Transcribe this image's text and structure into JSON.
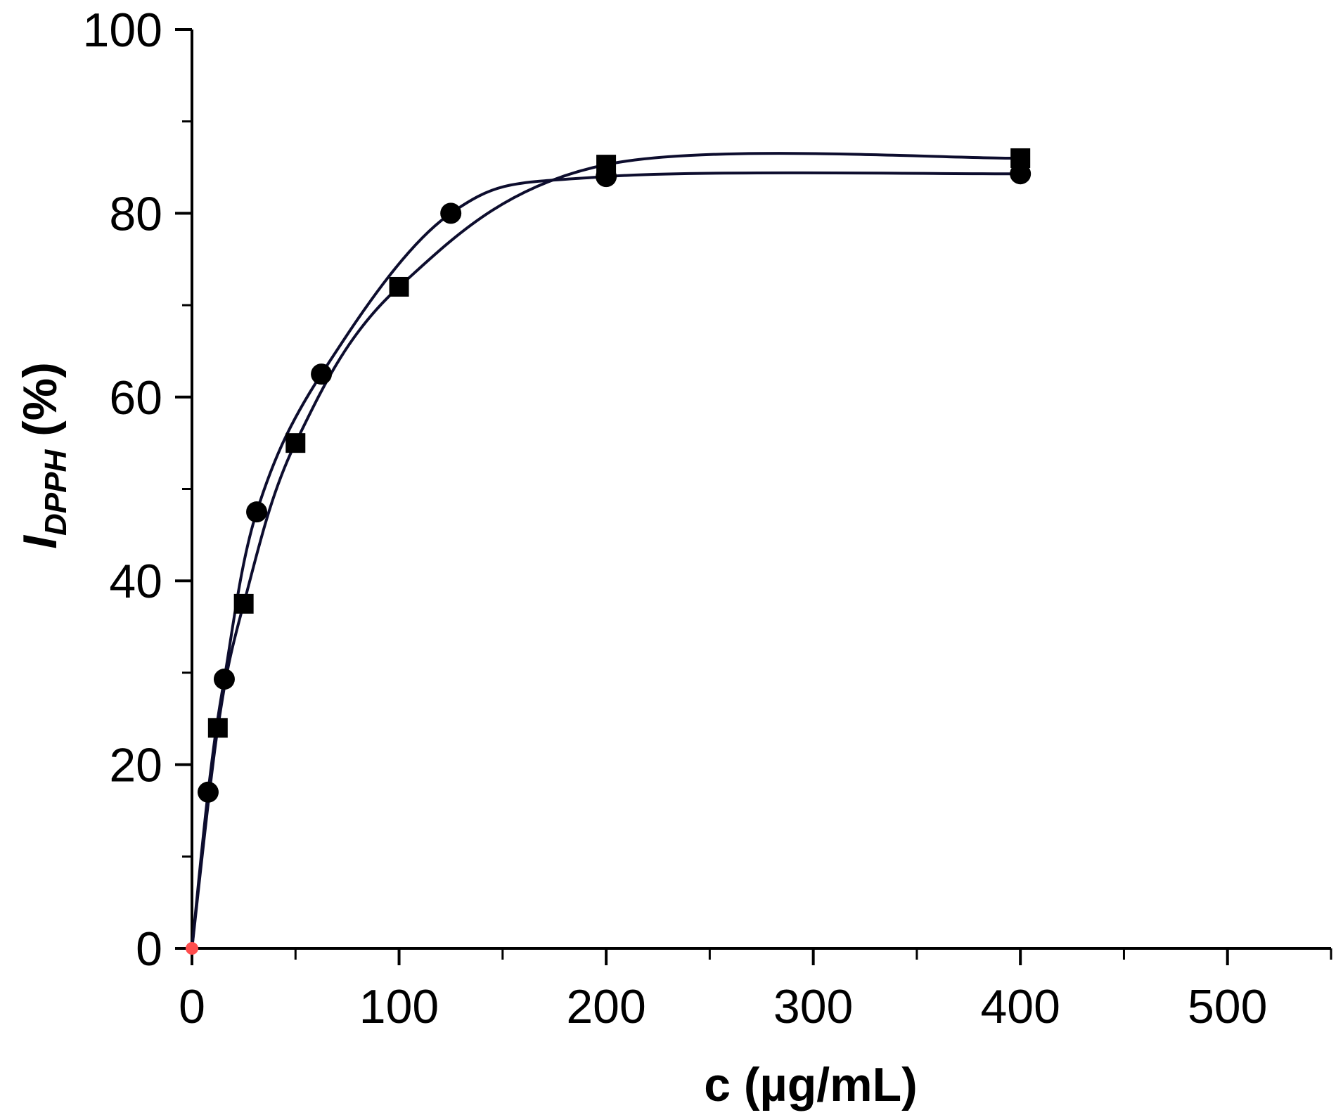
{
  "chart_data": {
    "type": "scatter",
    "xlabel": "c (µg/mL)",
    "ylabel": {
      "main": "I",
      "subscript": "DPPH",
      "unit": " (%)"
    },
    "xlim": [
      0,
      550
    ],
    "ylim": [
      0,
      100
    ],
    "x_ticks": [
      0,
      100,
      200,
      300,
      400,
      500
    ],
    "y_ticks": [
      0,
      20,
      40,
      60,
      80,
      100
    ],
    "x_minor_step": 50,
    "y_minor_step": 10,
    "grid": false,
    "legend": "none",
    "series": [
      {
        "marker": "square",
        "color": "#000000",
        "line_color": "#0d0d2e",
        "x": [
          0,
          12.5,
          25,
          50,
          100,
          200,
          400
        ],
        "y": [
          0,
          24,
          37.5,
          55,
          72,
          85.3,
          86
        ]
      },
      {
        "marker": "circle",
        "color": "#000000",
        "line_color": "#0d0d2e",
        "x": [
          0,
          7.8,
          15.6,
          31.25,
          62.5,
          125,
          200,
          400
        ],
        "y": [
          0,
          17,
          29.3,
          47.5,
          62.5,
          80,
          84,
          84.3
        ]
      }
    ],
    "origin_marker_color": "#ff4d4d"
  }
}
